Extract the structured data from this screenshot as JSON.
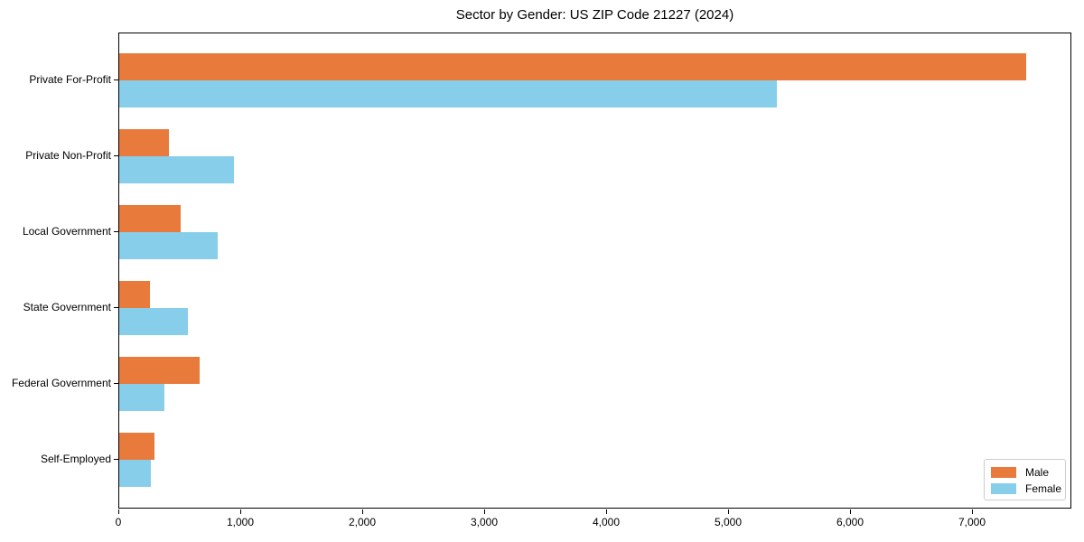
{
  "title": "Sector by Gender: US ZIP Code 21227 (2024)",
  "chart_data": {
    "type": "bar",
    "orientation": "horizontal",
    "title": "Sector by Gender: US ZIP Code 21227 (2024)",
    "categories": [
      "Private For-Profit",
      "Private Non-Profit",
      "Local Government",
      "State Government",
      "Federal Government",
      "Self-Employed"
    ],
    "series": [
      {
        "name": "Male",
        "color": "#e87a3c",
        "values": [
          7440,
          410,
          500,
          250,
          660,
          290
        ]
      },
      {
        "name": "Female",
        "color": "#87ceeb",
        "values": [
          5390,
          940,
          810,
          560,
          370,
          260
        ]
      }
    ],
    "xlabel": "",
    "ylabel": "",
    "xlim": [
      0,
      7815
    ],
    "xticks": [
      0,
      1000,
      2000,
      3000,
      4000,
      5000,
      6000,
      7000
    ],
    "xtick_labels": [
      "0",
      "1,000",
      "2,000",
      "3,000",
      "4,000",
      "5,000",
      "6,000",
      "7,000"
    ],
    "grid": false,
    "legend_position": "lower right",
    "background_color": "#ffffff",
    "frame_color": "#000000"
  },
  "legend": {
    "items": [
      {
        "label": "Male",
        "color": "#e87a3c"
      },
      {
        "label": "Female",
        "color": "#87ceeb"
      }
    ]
  }
}
